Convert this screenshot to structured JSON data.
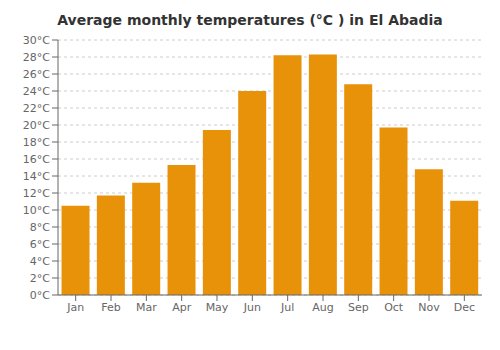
{
  "chart_data": {
    "type": "bar",
    "title": "Average monthly temperatures (°C ) in El Abadia",
    "categories": [
      "Jan",
      "Feb",
      "Mar",
      "Apr",
      "May",
      "Jun",
      "Jul",
      "Aug",
      "Sep",
      "Oct",
      "Nov",
      "Dec"
    ],
    "values": [
      10.5,
      11.7,
      13.2,
      15.3,
      19.4,
      24.0,
      28.2,
      28.3,
      24.8,
      19.7,
      14.8,
      11.1
    ],
    "color": "#E8920A",
    "ylim": [
      0,
      30
    ],
    "yticks": [
      {
        "value": 0,
        "label": "0°C"
      },
      {
        "value": 2,
        "label": "2°C"
      },
      {
        "value": 4,
        "label": "4°C"
      },
      {
        "value": 6,
        "label": "6°C"
      },
      {
        "value": 8,
        "label": "8°C"
      },
      {
        "value": 10,
        "label": "10°C"
      },
      {
        "value": 12,
        "label": "12°C"
      },
      {
        "value": 14,
        "label": "14°C"
      },
      {
        "value": 16,
        "label": "16°C"
      },
      {
        "value": 18,
        "label": "18°C"
      },
      {
        "value": 20,
        "label": "20°C"
      },
      {
        "value": 22,
        "label": "22°C"
      },
      {
        "value": 24,
        "label": "24°C"
      },
      {
        "value": 26,
        "label": "26°C"
      },
      {
        "value": 28,
        "label": "28°C"
      },
      {
        "value": 30,
        "label": "30°C"
      }
    ],
    "grid": true
  }
}
